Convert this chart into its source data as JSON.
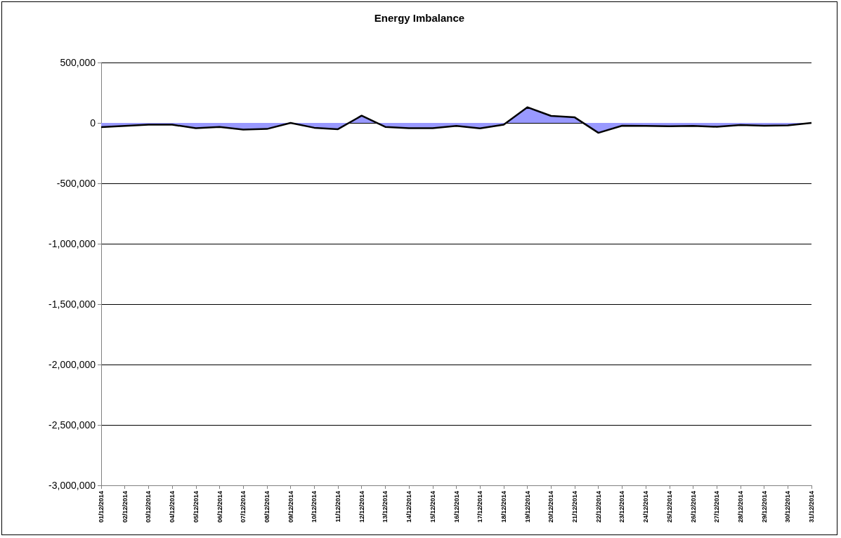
{
  "chart_data": {
    "type": "area",
    "title": "Energy Imbalance",
    "categories": [
      "01/12/2014",
      "02/12/2014",
      "03/12/2014",
      "04/12/2014",
      "05/12/2014",
      "06/12/2014",
      "07/12/2014",
      "08/12/2014",
      "09/12/2014",
      "10/12/2014",
      "11/12/2014",
      "12/12/2014",
      "13/12/2014",
      "14/12/2014",
      "15/12/2014",
      "16/12/2014",
      "17/12/2014",
      "18/12/2014",
      "19/12/2014",
      "20/12/2014",
      "21/12/2014",
      "22/12/2014",
      "23/12/2014",
      "24/12/2014",
      "25/12/2014",
      "26/12/2014",
      "27/12/2014",
      "28/12/2014",
      "29/12/2014",
      "30/12/2014",
      "31/12/2014"
    ],
    "series": [
      {
        "color": "#9999ff",
        "values": [
          -35000,
          -25000,
          -15000,
          -15000,
          -43000,
          -33000,
          -55000,
          -50000,
          0,
          -40000,
          -52000,
          60000,
          -33000,
          -43000,
          -43000,
          -25000,
          -45000,
          -15000,
          130000,
          58000,
          46000,
          -82000,
          -23000,
          -25000,
          -27000,
          -25000,
          -32000,
          -17000,
          -23000,
          -21000,
          0
        ]
      }
    ],
    "ylim": [
      -3000000,
      500000
    ],
    "yticks": [
      {
        "value": -3000000,
        "label": "-3,000,000"
      },
      {
        "value": -2500000,
        "label": "-2,500,000"
      },
      {
        "value": -2000000,
        "label": "-2,000,000"
      },
      {
        "value": -1500000,
        "label": "-1,500,000"
      },
      {
        "value": -1000000,
        "label": "-1,000,000"
      },
      {
        "value": -500000,
        "label": "-500,000"
      },
      0,
      {
        "value": 500000,
        "label": "500,000"
      }
    ],
    "grid": "y",
    "marker": "none",
    "line_style": "solid"
  }
}
